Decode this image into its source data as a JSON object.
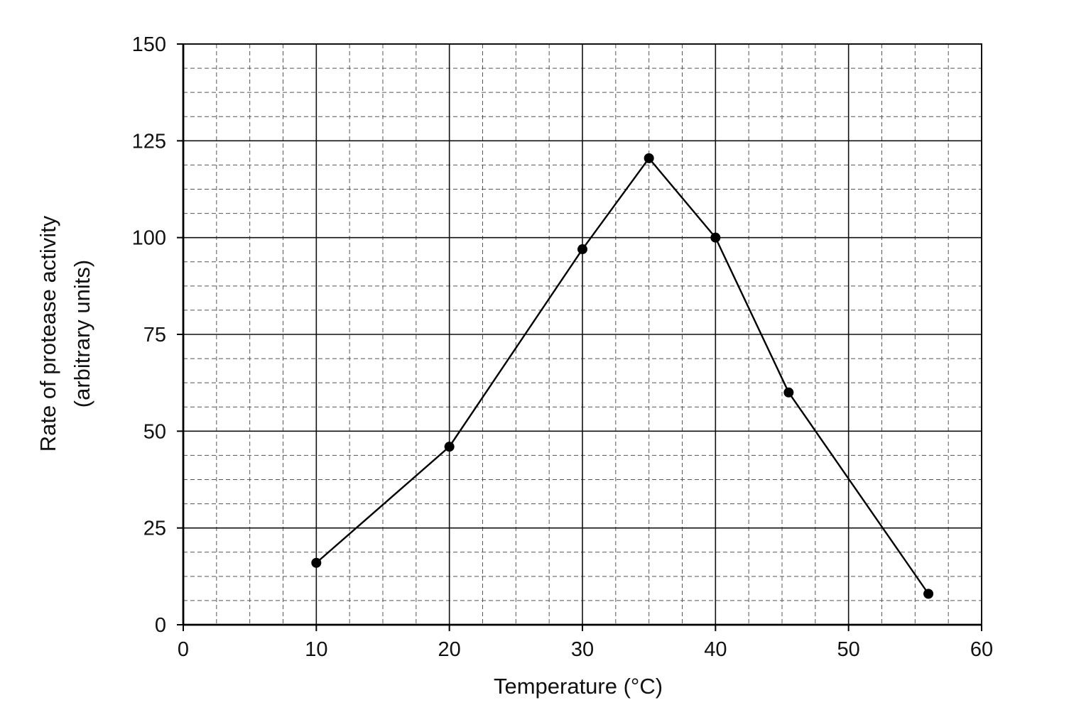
{
  "chart_data": {
    "type": "line",
    "xlabel": "Temperature (°C)",
    "ylabel": "Rate of protease activity",
    "ylabel_line2": "(arbitrary units)",
    "xlim": [
      0,
      60
    ],
    "ylim": [
      0,
      150
    ],
    "x_ticks": [
      0,
      10,
      20,
      30,
      40,
      50,
      60
    ],
    "y_ticks": [
      0,
      25,
      50,
      75,
      100,
      125,
      150
    ],
    "x_tick_labels": [
      "0",
      "10",
      "20",
      "30",
      "40",
      "50",
      "60"
    ],
    "y_tick_labels": [
      "0",
      "25",
      "50",
      "75",
      "100",
      "125",
      "150"
    ],
    "grid": true,
    "minor_grid": true,
    "series": [
      {
        "x": [
          10,
          20,
          30,
          35,
          40,
          45.5,
          56
        ],
        "y": [
          16,
          46,
          97,
          120.5,
          100,
          60,
          8
        ],
        "color": "#000000"
      }
    ]
  }
}
